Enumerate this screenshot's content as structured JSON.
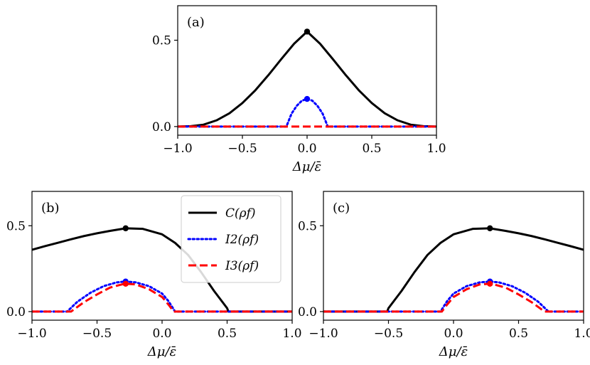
{
  "chart_data": [
    {
      "type": "line",
      "panel_label": "(a)",
      "xlabel": "Δμ/ε̄",
      "ylabel": "",
      "xlim": [
        -1.0,
        1.0
      ],
      "ylim": [
        -0.05,
        0.7
      ],
      "xticks": [
        "−1.0",
        "−0.5",
        "0.0",
        "0.5",
        "1.0"
      ],
      "xtick_values": [
        -1.0,
        -0.5,
        0.0,
        0.5,
        1.0
      ],
      "yticks": [
        "0.0",
        "0.5"
      ],
      "ytick_values": [
        0.0,
        0.5
      ],
      "series": [
        {
          "name": "C(ρf)",
          "color": "#000000",
          "style": "solid",
          "x": [
            -1.0,
            -0.9,
            -0.8,
            -0.7,
            -0.6,
            -0.5,
            -0.4,
            -0.3,
            -0.2,
            -0.1,
            0.0,
            0.1,
            0.2,
            0.3,
            0.4,
            0.5,
            0.6,
            0.7,
            0.8,
            0.9,
            1.0
          ],
          "y": [
            0.0,
            0.002,
            0.011,
            0.036,
            0.077,
            0.136,
            0.21,
            0.297,
            0.39,
            0.48,
            0.55,
            0.48,
            0.39,
            0.297,
            0.21,
            0.136,
            0.077,
            0.036,
            0.011,
            0.002,
            0.0
          ]
        },
        {
          "name": "I2(ρf)",
          "color": "#0000ff",
          "style": "dotted",
          "x": [
            -1.0,
            -0.16,
            -0.12,
            -0.08,
            -0.04,
            0.0,
            0.04,
            0.08,
            0.12,
            0.16,
            1.0
          ],
          "y": [
            0.0,
            0.0,
            0.075,
            0.12,
            0.15,
            0.16,
            0.15,
            0.12,
            0.075,
            0.0,
            0.0
          ]
        },
        {
          "name": "I3(ρf)",
          "color": "#ff0000",
          "style": "dashed",
          "x": [
            -1.0,
            1.0
          ],
          "y": [
            0.0,
            0.0
          ]
        }
      ],
      "markers": [
        {
          "x": 0.0,
          "y": 0.55,
          "color": "#000000"
        },
        {
          "x": 0.0,
          "y": 0.16,
          "color": "#0000ff"
        }
      ]
    },
    {
      "type": "line",
      "panel_label": "(b)",
      "xlabel": "Δμ/ε̄",
      "ylabel": "",
      "xlim": [
        -1.0,
        1.0
      ],
      "ylim": [
        -0.05,
        0.7
      ],
      "xticks": [
        "−1.0",
        "−0.5",
        "0.0",
        "0.5",
        "1.0"
      ],
      "xtick_values": [
        -1.0,
        -0.5,
        0.0,
        0.5,
        1.0
      ],
      "yticks": [
        "0.0",
        "0.5"
      ],
      "ytick_values": [
        0.0,
        0.5
      ],
      "legend": {
        "placement": "upper-right",
        "entries": [
          {
            "label": "C(ρf)",
            "color": "#000000",
            "style": "solid"
          },
          {
            "label": "I2(ρf)",
            "color": "#0000ff",
            "style": "dotted"
          },
          {
            "label": "I3(ρf)",
            "color": "#ff0000",
            "style": "dashed"
          }
        ]
      },
      "series": [
        {
          "name": "C(ρf)",
          "color": "#000000",
          "style": "solid",
          "x": [
            -1.0,
            -0.9,
            -0.8,
            -0.7,
            -0.6,
            -0.5,
            -0.4,
            -0.28,
            -0.15,
            0.0,
            0.1,
            0.2,
            0.3,
            0.4,
            0.5,
            0.51,
            1.0
          ],
          "y": [
            0.36,
            0.381,
            0.401,
            0.421,
            0.44,
            0.456,
            0.47,
            0.485,
            0.482,
            0.45,
            0.4,
            0.33,
            0.23,
            0.12,
            0.02,
            0.0,
            0.0
          ]
        },
        {
          "name": "I2(ρf)",
          "color": "#0000ff",
          "style": "dotted",
          "x": [
            -1.0,
            -0.73,
            -0.65,
            -0.55,
            -0.45,
            -0.35,
            -0.28,
            -0.2,
            -0.1,
            0.0,
            0.05,
            0.1,
            1.0
          ],
          "y": [
            0.0,
            0.0,
            0.058,
            0.11,
            0.148,
            0.17,
            0.175,
            0.17,
            0.148,
            0.105,
            0.06,
            0.0,
            0.0
          ]
        },
        {
          "name": "I3(ρf)",
          "color": "#ff0000",
          "style": "dashed",
          "x": [
            -1.0,
            -0.7,
            -0.6,
            -0.5,
            -0.4,
            -0.3,
            -0.27,
            -0.2,
            -0.1,
            0.0,
            0.05,
            0.09,
            1.0
          ],
          "y": [
            0.0,
            0.0,
            0.055,
            0.1,
            0.14,
            0.16,
            0.162,
            0.158,
            0.13,
            0.085,
            0.04,
            0.0,
            0.0
          ]
        }
      ],
      "markers": [
        {
          "x": -0.28,
          "y": 0.485,
          "color": "#000000"
        },
        {
          "x": -0.28,
          "y": 0.175,
          "color": "#0000ff"
        },
        {
          "x": -0.28,
          "y": 0.162,
          "color": "#ff0000"
        }
      ]
    },
    {
      "type": "line",
      "panel_label": "(c)",
      "xlabel": "Δμ/ε̄",
      "ylabel": "",
      "xlim": [
        -1.0,
        1.0
      ],
      "ylim": [
        -0.05,
        0.7
      ],
      "xticks": [
        "−1.0",
        "−0.5",
        "0.0",
        "0.5",
        "1.0"
      ],
      "xtick_values": [
        -1.0,
        -0.5,
        0.0,
        0.5,
        1.0
      ],
      "yticks": [
        "0.0",
        "0.5"
      ],
      "ytick_values": [
        0.0,
        0.5
      ],
      "series": [
        {
          "name": "C(ρf)",
          "color": "#000000",
          "style": "solid",
          "x": [
            -1.0,
            -0.51,
            -0.5,
            -0.4,
            -0.3,
            -0.2,
            -0.1,
            0.0,
            0.15,
            0.28,
            0.4,
            0.5,
            0.6,
            0.7,
            0.8,
            0.9,
            1.0
          ],
          "y": [
            0.0,
            0.0,
            0.02,
            0.12,
            0.23,
            0.33,
            0.4,
            0.45,
            0.482,
            0.485,
            0.47,
            0.456,
            0.44,
            0.421,
            0.401,
            0.381,
            0.36
          ]
        },
        {
          "name": "I2(ρf)",
          "color": "#0000ff",
          "style": "dotted",
          "x": [
            -1.0,
            -0.1,
            -0.05,
            0.0,
            0.1,
            0.2,
            0.28,
            0.35,
            0.45,
            0.55,
            0.65,
            0.73,
            1.0
          ],
          "y": [
            0.0,
            0.0,
            0.06,
            0.105,
            0.148,
            0.17,
            0.175,
            0.17,
            0.148,
            0.11,
            0.058,
            0.0,
            0.0
          ]
        },
        {
          "name": "I3(ρf)",
          "color": "#ff0000",
          "style": "dashed",
          "x": [
            -1.0,
            -0.09,
            -0.05,
            0.0,
            0.1,
            0.2,
            0.27,
            0.3,
            0.4,
            0.5,
            0.6,
            0.7,
            1.0
          ],
          "y": [
            0.0,
            0.0,
            0.04,
            0.085,
            0.13,
            0.158,
            0.162,
            0.16,
            0.14,
            0.1,
            0.055,
            0.0,
            0.0
          ]
        }
      ],
      "markers": [
        {
          "x": 0.28,
          "y": 0.485,
          "color": "#000000"
        },
        {
          "x": 0.28,
          "y": 0.175,
          "color": "#0000ff"
        },
        {
          "x": 0.28,
          "y": 0.162,
          "color": "#ff0000"
        }
      ]
    }
  ]
}
